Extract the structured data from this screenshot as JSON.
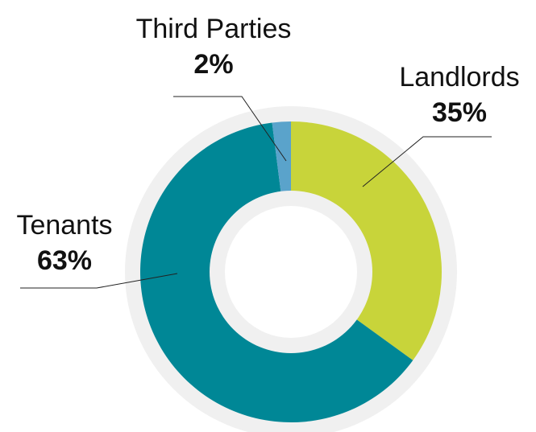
{
  "chart_data": {
    "type": "pie",
    "categories": [
      "Landlords",
      "Tenants",
      "Third Parties"
    ],
    "values": [
      35,
      63,
      2
    ],
    "value_labels": [
      "35%",
      "63%",
      "2%"
    ],
    "colors": [
      "#c8d43a",
      "#008796",
      "#5aa3cb"
    ]
  }
}
